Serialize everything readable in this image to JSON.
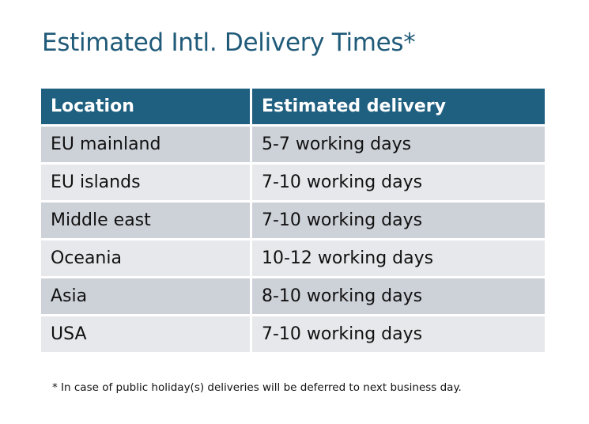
{
  "title": "Estimated Intl. Delivery Times*",
  "table": {
    "headers": [
      "Location",
      "Estimated delivery"
    ],
    "rows": [
      [
        "EU mainland",
        "5-7 working days"
      ],
      [
        "EU islands",
        "7-10 working days"
      ],
      [
        "Middle east",
        "7-10 working days"
      ],
      [
        "Oceania",
        "10-12 working days"
      ],
      [
        "Asia",
        "8-10 working days"
      ],
      [
        "USA",
        "7-10 working days"
      ]
    ]
  },
  "footnote": "* In case of public holiday(s) deliveries will be deferred to next business day.",
  "colors": {
    "header": "#1f5f80",
    "title": "#1f5a78",
    "row_dark": "#cdd1d8",
    "row_light": "#e6e8eb"
  }
}
